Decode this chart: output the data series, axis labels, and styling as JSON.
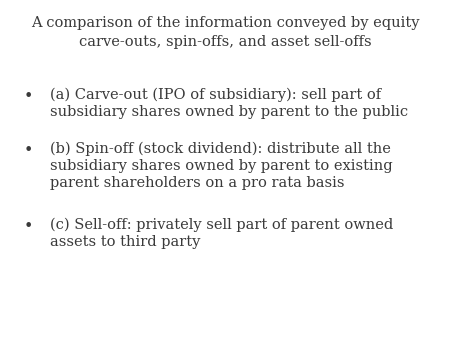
{
  "title_line1": "A comparison of the information conveyed by equity",
  "title_line2": "carve-outs, spin-offs, and asset sell-offs",
  "bullet_items": [
    {
      "lines": [
        "(a) Carve-out (IPO of subsidiary): sell part of",
        "subsidiary shares owned by parent to the public"
      ]
    },
    {
      "lines": [
        "(b) Spin-off (stock dividend): distribute all the",
        "subsidiary shares owned by parent to existing",
        "parent shareholders on a pro rata basis"
      ]
    },
    {
      "lines": [
        "(c) Sell-off: privately sell part of parent owned",
        "assets to third party"
      ]
    }
  ],
  "background_color": "#ffffff",
  "text_color": "#3a3a3a",
  "title_fontsize": 10.5,
  "body_fontsize": 10.5,
  "bullet_char": "•"
}
